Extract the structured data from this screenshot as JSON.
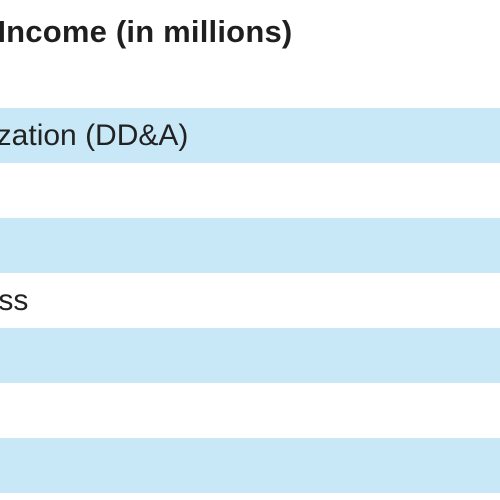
{
  "header": {
    "title": "t Income (in millions)"
  },
  "table": {
    "rows": [
      {
        "label": "ortization (DD&A)",
        "shaded": true
      },
      {
        "label": "",
        "shaded": false
      },
      {
        "label": "",
        "shaded": true
      },
      {
        "label": "Loss",
        "shaded": false
      },
      {
        "label": "",
        "shaded": true
      },
      {
        "label": "",
        "shaded": false
      },
      {
        "label": "",
        "shaded": true
      }
    ]
  },
  "colors": {
    "row_shade": "#c8e8f7",
    "row_plain": "#ffffff",
    "text": "#222222"
  }
}
